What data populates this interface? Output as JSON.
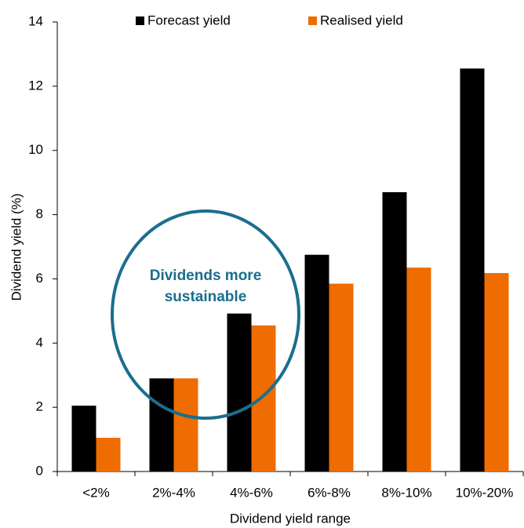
{
  "chart_data": {
    "type": "bar",
    "categories": [
      "<2%",
      "2%-4%",
      "4%-6%",
      "6%-8%",
      "8%-10%",
      "10%-20%"
    ],
    "series": [
      {
        "name": "Forecast yield",
        "color": "#000000",
        "values": [
          2.05,
          2.9,
          4.92,
          6.75,
          8.7,
          12.55
        ]
      },
      {
        "name": "Realised yield",
        "color": "#ee6c00",
        "values": [
          1.05,
          2.9,
          4.55,
          5.85,
          6.35,
          6.18
        ]
      }
    ],
    "ylim": [
      0,
      14
    ],
    "yticks": [
      0,
      2,
      4,
      6,
      8,
      10,
      12,
      14
    ],
    "y_label": "Dividend yield (%)",
    "x_label": "Dividend yield range",
    "legend": "top",
    "grid": false,
    "annotations": [
      "Dividends more",
      "sustainable"
    ]
  }
}
